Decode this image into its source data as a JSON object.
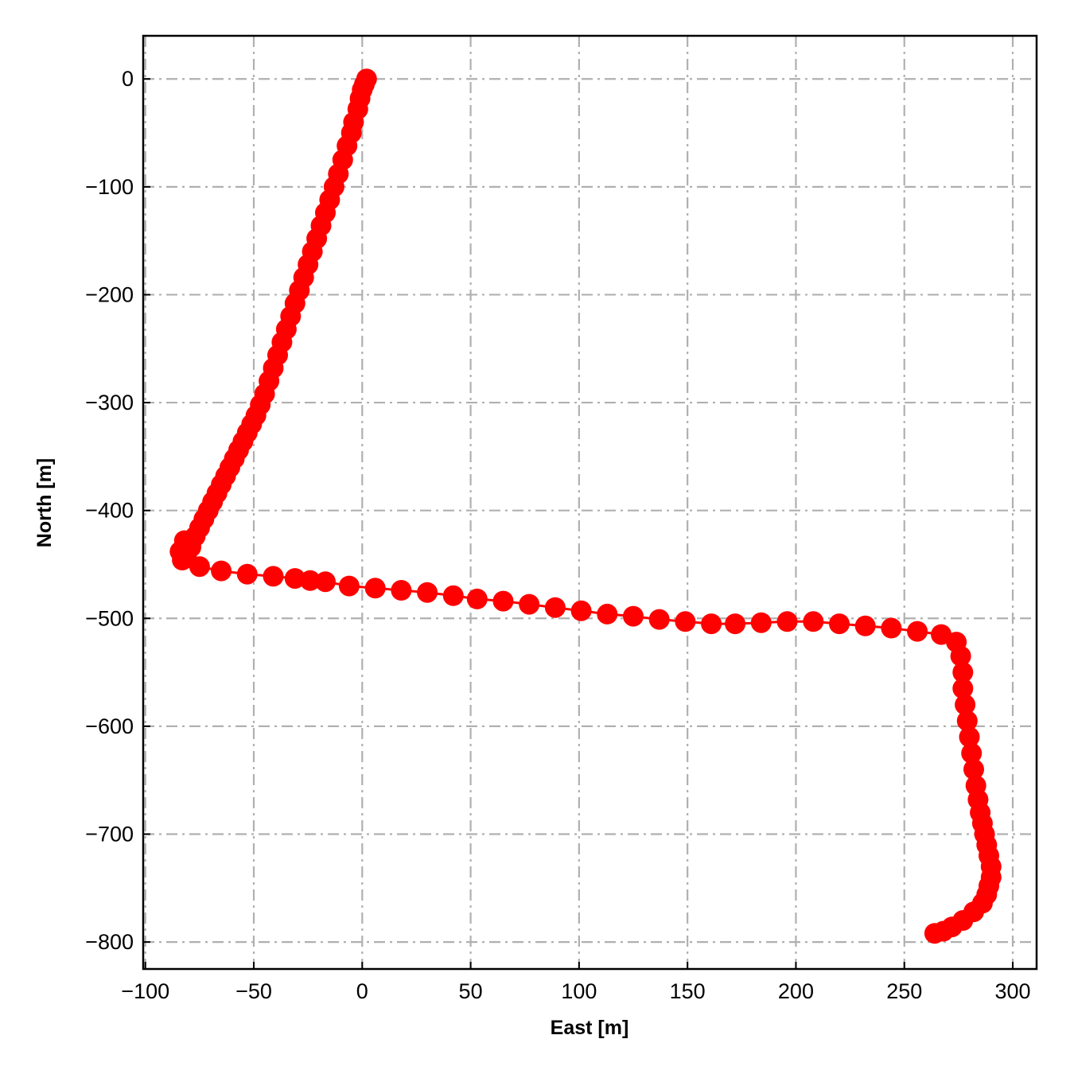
{
  "chart_data": {
    "type": "scatter",
    "xlabel": "East [m]",
    "ylabel": "North [m]",
    "xlim": [
      -101,
      311
    ],
    "ylim": [
      -825,
      40
    ],
    "xticks": [
      -100,
      -50,
      0,
      50,
      100,
      150,
      200,
      250,
      300
    ],
    "yticks": [
      0,
      -100,
      -200,
      -300,
      -400,
      -500,
      -600,
      -700,
      -800
    ],
    "xtick_labels": [
      "−100",
      "−50",
      "0",
      "50",
      "100",
      "150",
      "200",
      "250",
      "300"
    ],
    "ytick_labels": [
      "0",
      "−100",
      "−200",
      "−300",
      "−400",
      "−500",
      "−600",
      "−700",
      "−800"
    ],
    "grid": true,
    "line_color": "#ff0000",
    "marker_color": "#ff0000",
    "series": [
      {
        "x": [
          2,
          1,
          0,
          -1,
          -2,
          -4,
          -5,
          -7,
          -9,
          -11,
          -13,
          -15,
          -17,
          -19,
          -21,
          -23,
          -25,
          -27,
          -29,
          -31,
          -33,
          -35,
          -37,
          -39,
          -41,
          -43,
          -45,
          -47,
          -49,
          -51,
          -53,
          -55,
          -57,
          -59,
          -61,
          -63,
          -65,
          -67,
          -69,
          -71,
          -73,
          -75,
          -77,
          -79,
          -81,
          -83,
          -84,
          -82,
          -75,
          -65,
          -53,
          -41,
          -31,
          -24,
          -17,
          -6,
          6,
          18,
          30,
          42,
          53,
          65,
          77,
          89,
          101,
          113,
          125,
          137,
          149,
          161,
          172,
          184,
          196,
          208,
          220,
          232,
          244,
          256,
          267,
          274,
          276,
          277,
          277,
          278,
          279,
          280,
          281,
          282,
          283,
          284,
          285,
          286,
          287,
          288,
          289,
          290,
          290,
          289,
          288,
          286,
          282,
          277,
          272,
          268,
          264
        ],
        "y": [
          0,
          -5,
          -10,
          -18,
          -28,
          -40,
          -50,
          -62,
          -75,
          -88,
          -100,
          -112,
          -124,
          -136,
          -148,
          -160,
          -172,
          -184,
          -196,
          -208,
          -220,
          -232,
          -244,
          -256,
          -268,
          -280,
          -292,
          -302,
          -312,
          -320,
          -328,
          -336,
          -344,
          -352,
          -360,
          -368,
          -376,
          -384,
          -392,
          -400,
          -408,
          -416,
          -424,
          -434,
          -444,
          -446,
          -438,
          -428,
          -452,
          -456,
          -459,
          -461,
          -463,
          -465,
          -466,
          -470,
          -472,
          -474,
          -476,
          -479,
          -482,
          -484,
          -487,
          -490,
          -493,
          -496,
          -498,
          -501,
          -503,
          -505,
          -505,
          -504,
          -503,
          -503,
          -505,
          -507,
          -509,
          -512,
          -515,
          -522,
          -535,
          -550,
          -565,
          -580,
          -595,
          -610,
          -625,
          -640,
          -655,
          -668,
          -680,
          -690,
          -700,
          -710,
          -720,
          -730,
          -740,
          -748,
          -756,
          -764,
          -772,
          -780,
          -786,
          -790,
          -792
        ]
      }
    ]
  }
}
